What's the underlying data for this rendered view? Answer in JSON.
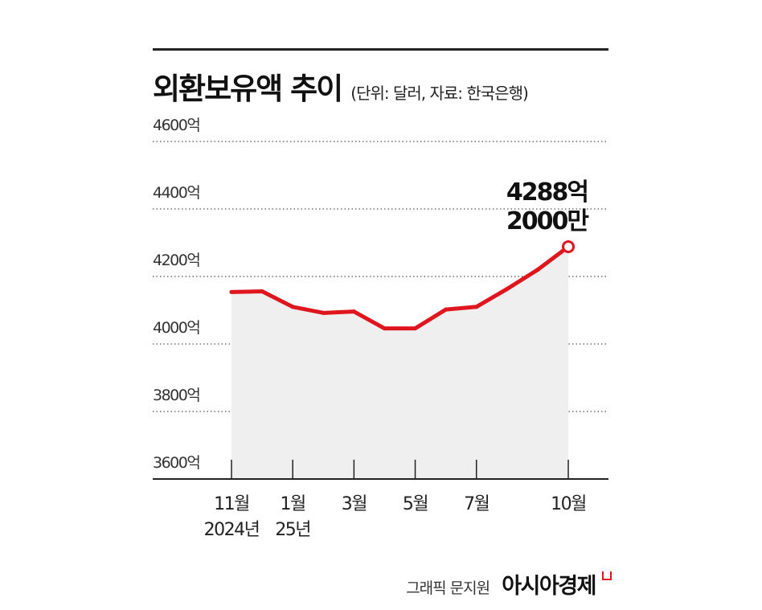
{
  "header": {
    "title": "외환보유액 추이",
    "subtitle": "(단위: 달러, 자료: 한국은행)"
  },
  "footer": {
    "credit": "그래픽 문지원",
    "brand": "아시아경제"
  },
  "colors": {
    "line": "#e0161e",
    "area": "#efefef",
    "grid": "#555555",
    "axis": "#222222"
  },
  "chart_data": {
    "type": "line",
    "title": "외환보유액 추이",
    "subtitle": "(단위: 달러, 자료: 한국은행)",
    "x": [
      "2024-11",
      "2024-12",
      "2025-01",
      "2025-02",
      "2025-03",
      "2025-04",
      "2025-05",
      "2025-06",
      "2025-07",
      "2025-08",
      "2025-09",
      "2025-10"
    ],
    "series": [
      {
        "values": [
          4154,
          4156,
          4110,
          4092,
          4096,
          4046,
          4046,
          4102,
          4110,
          4163,
          4220,
          4288.2
        ]
      }
    ],
    "ylim": [
      3600,
      4600
    ],
    "yticks": [
      3600,
      3800,
      4000,
      4200,
      4400,
      4600
    ],
    "ytick_labels": [
      "3600억",
      "3800억",
      "4000억",
      "4200억",
      "4400억",
      "4600억"
    ],
    "xticks": [
      {
        "x": "2024-11",
        "lines": [
          "11월",
          "2024년"
        ]
      },
      {
        "x": "2025-01",
        "lines": [
          "1월",
          "25년"
        ]
      },
      {
        "x": "2025-03",
        "lines": [
          "3월"
        ]
      },
      {
        "x": "2025-05",
        "lines": [
          "5월"
        ]
      },
      {
        "x": "2025-07",
        "lines": [
          "7월"
        ]
      },
      {
        "x": "2025-10",
        "lines": [
          "10월"
        ]
      }
    ],
    "annotations": [
      {
        "x": "2025-10",
        "lines": [
          "4288억",
          "2000만"
        ]
      }
    ],
    "area_fill": true,
    "grid": true,
    "grid_style": "dotted"
  }
}
